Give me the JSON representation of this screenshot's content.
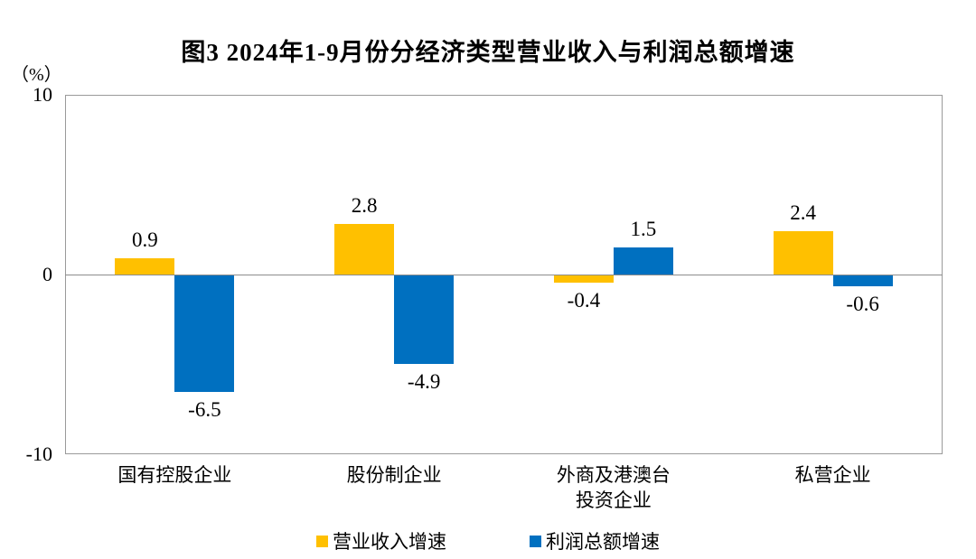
{
  "chart_data": {
    "type": "bar",
    "title": "图3 2024年1-9月份分经济类型营业收入与利润总额增速",
    "ylabel": "（%）",
    "xlabel": "",
    "ylim": [
      -10,
      10
    ],
    "y_ticks": [
      10,
      0,
      -10
    ],
    "grid": false,
    "legend_position": "bottom",
    "categories": [
      "国有控股企业",
      "股份制企业",
      "外商及港澳台投资企业",
      "私营企业"
    ],
    "category_display": [
      [
        "国有控股企业"
      ],
      [
        "股份制企业"
      ],
      [
        "外商及港澳台",
        "投资企业"
      ],
      [
        "私营企业"
      ]
    ],
    "series": [
      {
        "name": "营业收入增速",
        "color": "#FFC000",
        "values": [
          0.9,
          2.8,
          -0.4,
          2.4
        ]
      },
      {
        "name": "利润总额增速",
        "color": "#0070C0",
        "values": [
          -6.5,
          -4.9,
          1.5,
          -0.6
        ]
      }
    ],
    "value_labels": [
      [
        "0.9",
        "2.8",
        "-0.4",
        "2.4"
      ],
      [
        "-6.5",
        "-4.9",
        "1.5",
        "-0.6"
      ]
    ],
    "colors": {
      "revenue_series": "#FFC000",
      "profit_series": "#0070C0",
      "axis_line": "#8c8c8c",
      "plot_border": "#9a9a9a",
      "text": "#000000",
      "background": "#ffffff"
    }
  }
}
